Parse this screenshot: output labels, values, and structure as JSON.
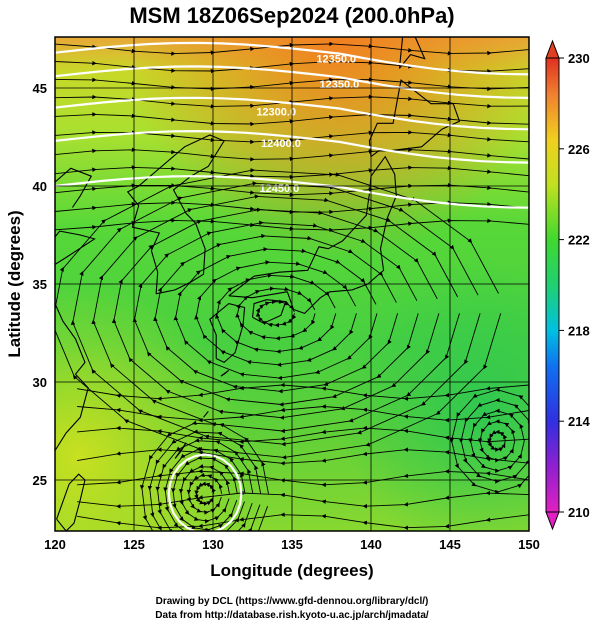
{
  "title": "MSM 18Z06Sep2024 (200.0hPa)",
  "map": {
    "xlabel": "Longitude (degrees)",
    "ylabel": "Latitude  (degrees)",
    "lon_range": [
      120,
      150
    ],
    "lat_range": [
      22.4,
      47.6
    ],
    "lon_ticks": [
      "120",
      "125",
      "130",
      "135",
      "140",
      "145",
      "150"
    ],
    "lat_ticks": [
      "25",
      "30",
      "35",
      "40",
      "45"
    ],
    "grid": true,
    "field": "temperature (shaded) with wind streamlines",
    "contour_labels": [
      "12350.0",
      "12300.0",
      "12400.0",
      "12450.0"
    ]
  },
  "colorbar": {
    "range": [
      210,
      230
    ],
    "tick_labels": [
      "230",
      "226",
      "222",
      "218",
      "214",
      "210"
    ],
    "colors": [
      "#d010d0",
      "#7020e0",
      "#1030e0",
      "#00a0f0",
      "#20d8a0",
      "#20d020",
      "#a0e020",
      "#e8e810",
      "#f8a020",
      "#e02020"
    ]
  },
  "credits": {
    "line1": "Drawing by DCL (https://www.gfd-dennou.org/library/dcl/)",
    "line2": "Data from http://database.rish.kyoto-u.ac.jp/arch/jmadata/"
  }
}
